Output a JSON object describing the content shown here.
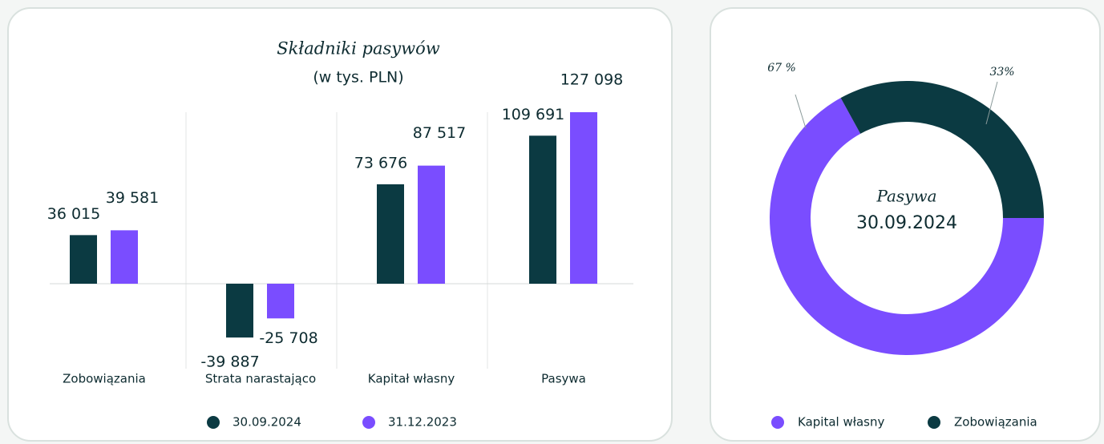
{
  "chart_data": [
    {
      "type": "bar",
      "title": "Składniki pasywów",
      "subtitle": "(w tys. PLN)",
      "categories": [
        "Zobowiązania",
        "Strata narastająco",
        "Kapitał własny",
        "Pasywa"
      ],
      "series": [
        {
          "name": "30.09.2024",
          "color": "#0b3a42",
          "values": [
            36015,
            -39887,
            73676,
            109691
          ],
          "value_labels": [
            "36 015",
            "-39 887",
            "73 676",
            "109 691"
          ]
        },
        {
          "name": "31.12.2023",
          "color": "#7a4dff",
          "values": [
            39581,
            -25708,
            87517,
            127098
          ],
          "value_labels": [
            "39 581",
            "-25 708",
            "87 517",
            "127 098"
          ]
        }
      ]
    },
    {
      "type": "pie",
      "title": "Pasywa",
      "subtitle": "30.09.2024",
      "categories": [
        "Kapital własny",
        "Zobowiązania"
      ],
      "values": [
        67,
        33
      ],
      "value_labels": [
        "67 %",
        "33%"
      ],
      "colors": [
        "#7a4dff",
        "#0b3a42"
      ]
    }
  ]
}
